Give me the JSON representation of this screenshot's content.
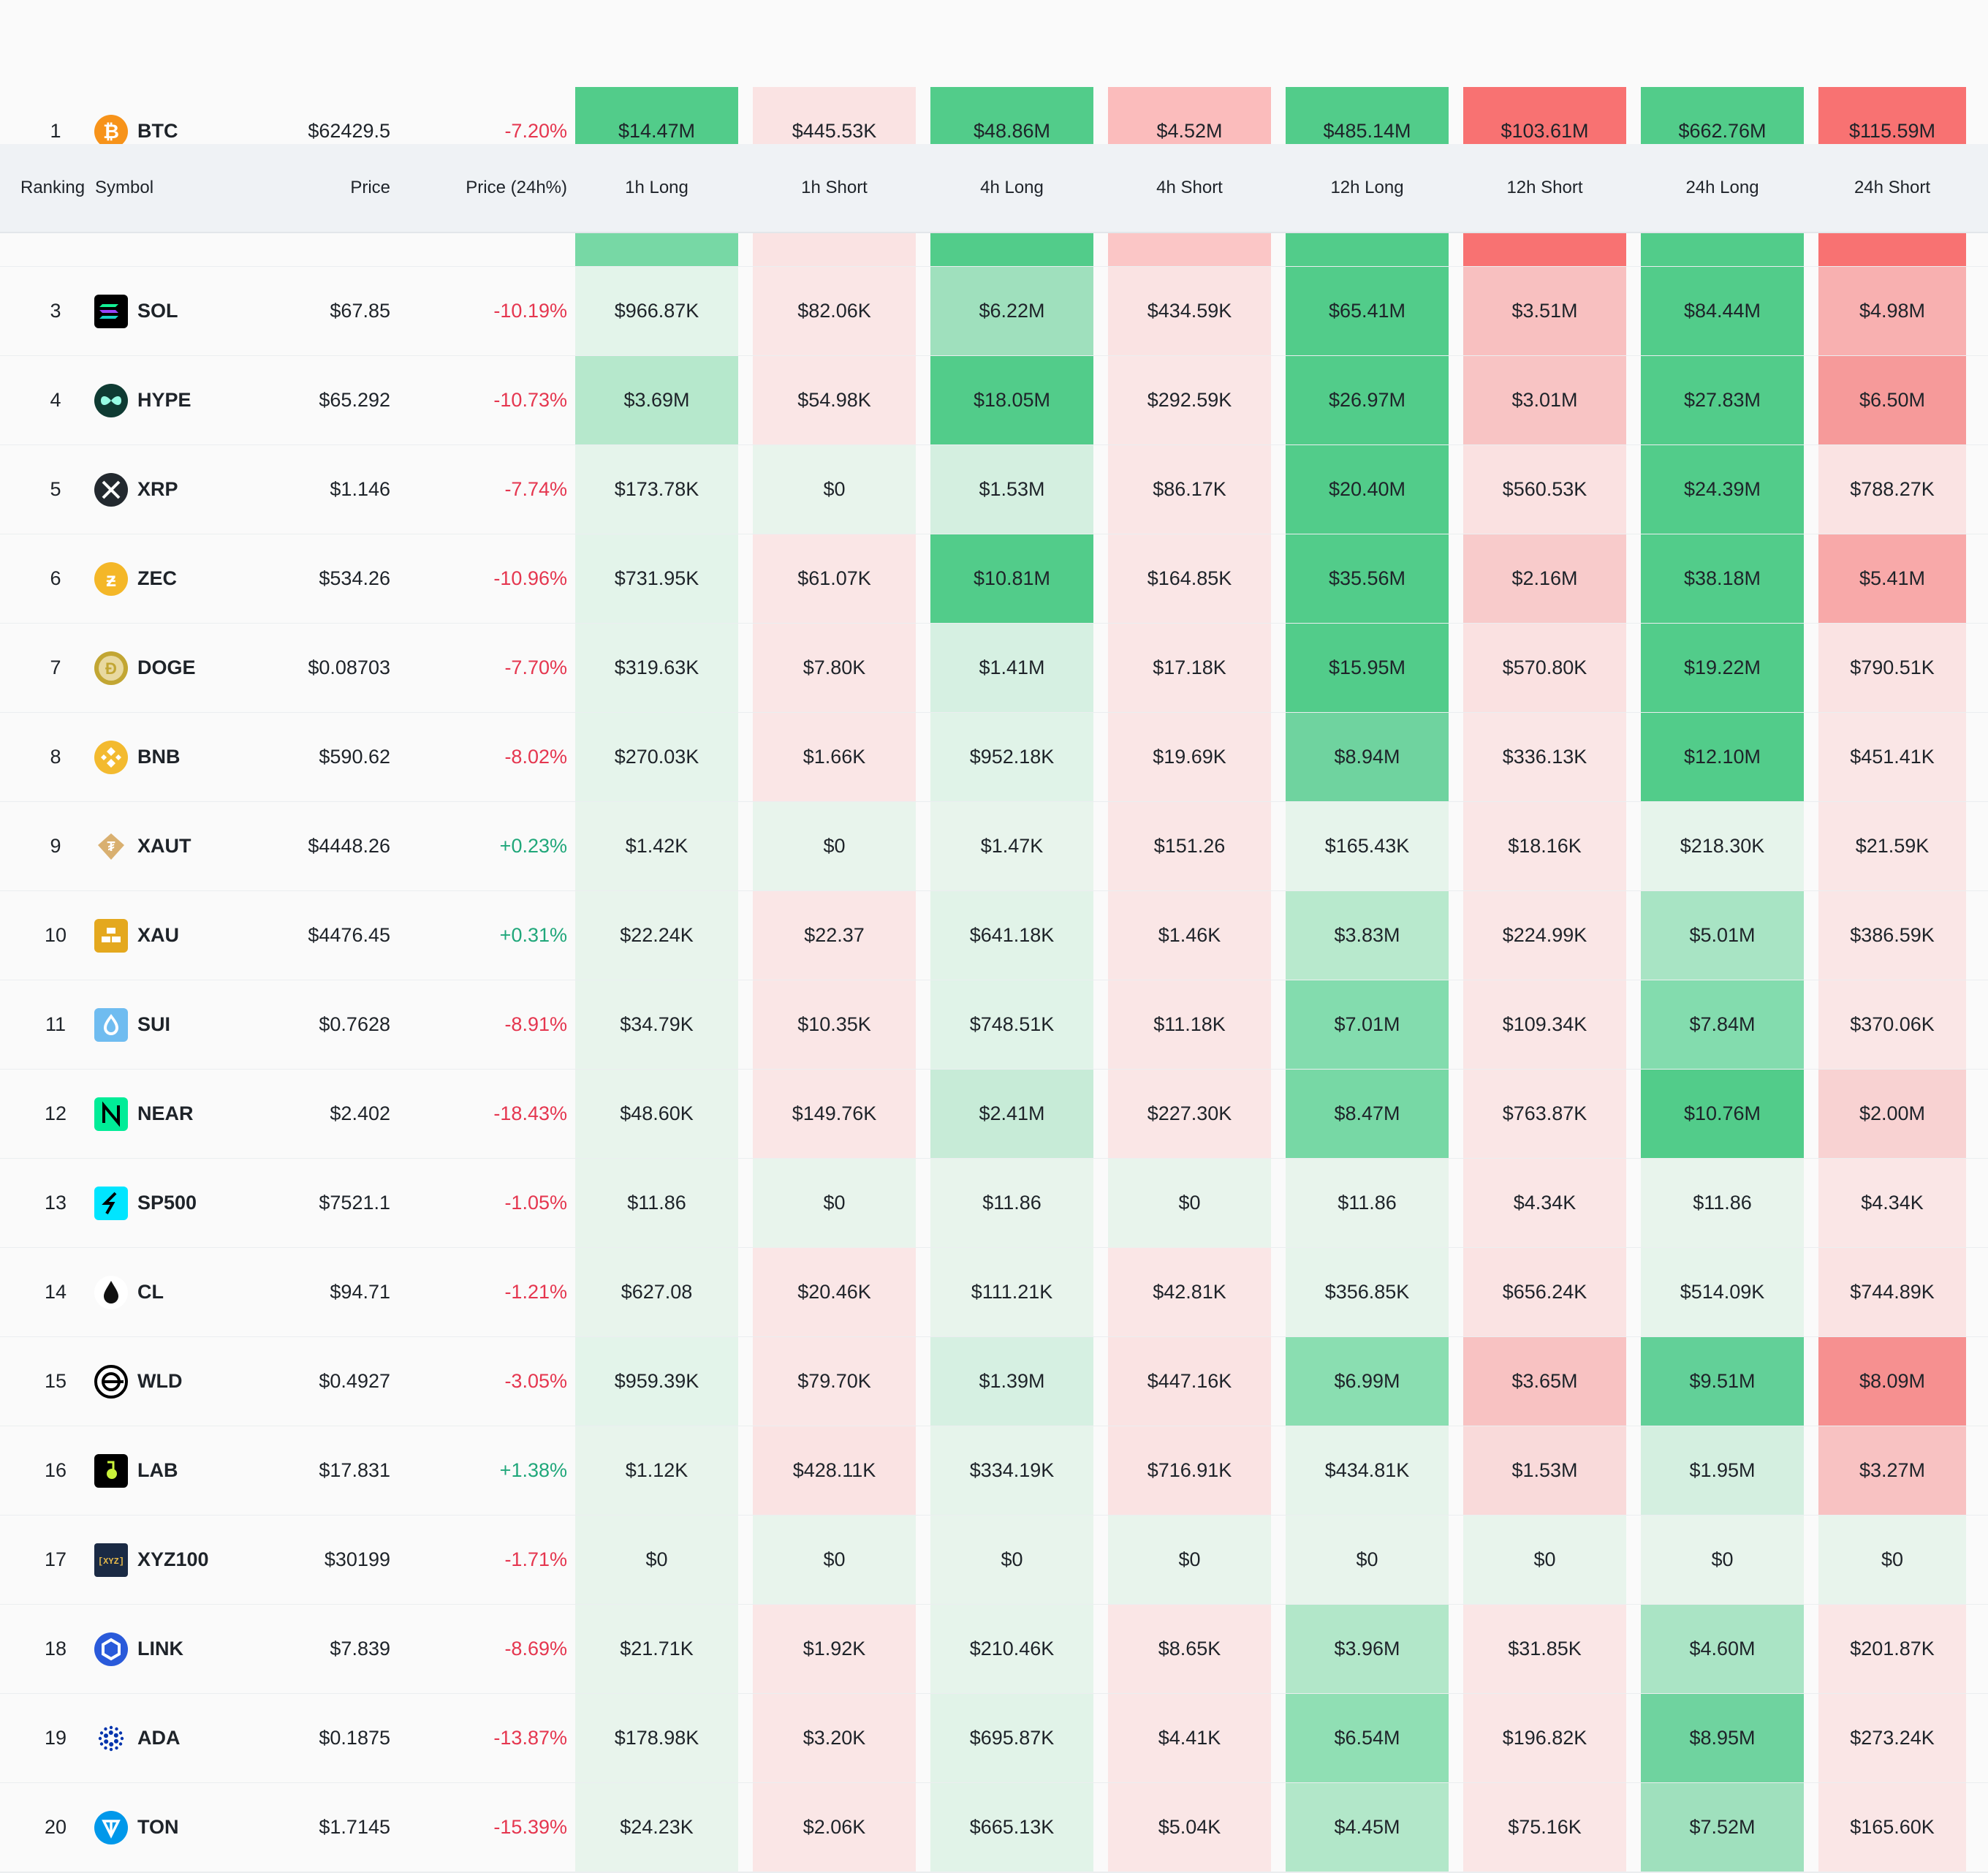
{
  "header": {
    "ranking": "Ranking",
    "symbol": "Symbol",
    "price": "Price",
    "change": "Price (24h%)",
    "cols": [
      "1h Long",
      "1h Short",
      "4h Long",
      "4h Short",
      "12h Long",
      "12h Short",
      "24h Long",
      "24h Short"
    ]
  },
  "colors": {
    "long_strong": "#52cc8a",
    "short_strong": "#f87272",
    "positive_text": "#20a77a",
    "negative_text": "#e5364f"
  },
  "rows": [
    {
      "rank": "1",
      "symbol": "BTC",
      "icon": "btc-icon",
      "price": "$62429.5",
      "change": "-7.20%",
      "values": [
        "$14.47M",
        "$445.53K",
        "$48.86M",
        "$4.52M",
        "$485.14M",
        "$103.61M",
        "$662.76M",
        "$115.59M"
      ]
    },
    {
      "rank": "",
      "symbol": "",
      "icon": "",
      "price": "",
      "change": "",
      "values": [
        "",
        "",
        "",
        "",
        "",
        "",
        "",
        ""
      ]
    },
    {
      "rank": "3",
      "symbol": "SOL",
      "icon": "sol-icon",
      "price": "$67.85",
      "change": "-10.19%",
      "values": [
        "$966.87K",
        "$82.06K",
        "$6.22M",
        "$434.59K",
        "$65.41M",
        "$3.51M",
        "$84.44M",
        "$4.98M"
      ]
    },
    {
      "rank": "4",
      "symbol": "HYPE",
      "icon": "hype-icon",
      "price": "$65.292",
      "change": "-10.73%",
      "values": [
        "$3.69M",
        "$54.98K",
        "$18.05M",
        "$292.59K",
        "$26.97M",
        "$3.01M",
        "$27.83M",
        "$6.50M"
      ]
    },
    {
      "rank": "5",
      "symbol": "XRP",
      "icon": "xrp-icon",
      "price": "$1.146",
      "change": "-7.74%",
      "values": [
        "$173.78K",
        "$0",
        "$1.53M",
        "$86.17K",
        "$20.40M",
        "$560.53K",
        "$24.39M",
        "$788.27K"
      ]
    },
    {
      "rank": "6",
      "symbol": "ZEC",
      "icon": "zec-icon",
      "price": "$534.26",
      "change": "-10.96%",
      "values": [
        "$731.95K",
        "$61.07K",
        "$10.81M",
        "$164.85K",
        "$35.56M",
        "$2.16M",
        "$38.18M",
        "$5.41M"
      ]
    },
    {
      "rank": "7",
      "symbol": "DOGE",
      "icon": "doge-icon",
      "price": "$0.08703",
      "change": "-7.70%",
      "values": [
        "$319.63K",
        "$7.80K",
        "$1.41M",
        "$17.18K",
        "$15.95M",
        "$570.80K",
        "$19.22M",
        "$790.51K"
      ]
    },
    {
      "rank": "8",
      "symbol": "BNB",
      "icon": "bnb-icon",
      "price": "$590.62",
      "change": "-8.02%",
      "values": [
        "$270.03K",
        "$1.66K",
        "$952.18K",
        "$19.69K",
        "$8.94M",
        "$336.13K",
        "$12.10M",
        "$451.41K"
      ]
    },
    {
      "rank": "9",
      "symbol": "XAUT",
      "icon": "xaut-icon",
      "price": "$4448.26",
      "change": "+0.23%",
      "values": [
        "$1.42K",
        "$0",
        "$1.47K",
        "$151.26",
        "$165.43K",
        "$18.16K",
        "$218.30K",
        "$21.59K"
      ]
    },
    {
      "rank": "10",
      "symbol": "XAU",
      "icon": "xau-icon",
      "price": "$4476.45",
      "change": "+0.31%",
      "values": [
        "$22.24K",
        "$22.37",
        "$641.18K",
        "$1.46K",
        "$3.83M",
        "$224.99K",
        "$5.01M",
        "$386.59K"
      ]
    },
    {
      "rank": "11",
      "symbol": "SUI",
      "icon": "sui-icon",
      "price": "$0.7628",
      "change": "-8.91%",
      "values": [
        "$34.79K",
        "$10.35K",
        "$748.51K",
        "$11.18K",
        "$7.01M",
        "$109.34K",
        "$7.84M",
        "$370.06K"
      ]
    },
    {
      "rank": "12",
      "symbol": "NEAR",
      "icon": "near-icon",
      "price": "$2.402",
      "change": "-18.43%",
      "values": [
        "$48.60K",
        "$149.76K",
        "$2.41M",
        "$227.30K",
        "$8.47M",
        "$763.87K",
        "$10.76M",
        "$2.00M"
      ]
    },
    {
      "rank": "13",
      "symbol": "SP500",
      "icon": "sp500-icon",
      "price": "$7521.1",
      "change": "-1.05%",
      "values": [
        "$11.86",
        "$0",
        "$11.86",
        "$0",
        "$11.86",
        "$4.34K",
        "$11.86",
        "$4.34K"
      ]
    },
    {
      "rank": "14",
      "symbol": "CL",
      "icon": "oil-drop-icon",
      "price": "$94.71",
      "change": "-1.21%",
      "values": [
        "$627.08",
        "$20.46K",
        "$111.21K",
        "$42.81K",
        "$356.85K",
        "$656.24K",
        "$514.09K",
        "$744.89K"
      ]
    },
    {
      "rank": "15",
      "symbol": "WLD",
      "icon": "wld-icon",
      "price": "$0.4927",
      "change": "-3.05%",
      "values": [
        "$959.39K",
        "$79.70K",
        "$1.39M",
        "$447.16K",
        "$6.99M",
        "$3.65M",
        "$9.51M",
        "$8.09M"
      ]
    },
    {
      "rank": "16",
      "symbol": "LAB",
      "icon": "lab-icon",
      "price": "$17.831",
      "change": "+1.38%",
      "values": [
        "$1.12K",
        "$428.11K",
        "$334.19K",
        "$716.91K",
        "$434.81K",
        "$1.53M",
        "$1.95M",
        "$3.27M"
      ]
    },
    {
      "rank": "17",
      "symbol": "XYZ100",
      "icon": "xyz100-icon",
      "price": "$30199",
      "change": "-1.71%",
      "values": [
        "$0",
        "$0",
        "$0",
        "$0",
        "$0",
        "$0",
        "$0",
        "$0"
      ]
    },
    {
      "rank": "18",
      "symbol": "LINK",
      "icon": "link-icon",
      "price": "$7.839",
      "change": "-8.69%",
      "values": [
        "$21.71K",
        "$1.92K",
        "$210.46K",
        "$8.65K",
        "$3.96M",
        "$31.85K",
        "$4.60M",
        "$201.87K"
      ]
    },
    {
      "rank": "19",
      "symbol": "ADA",
      "icon": "ada-icon",
      "price": "$0.1875",
      "change": "-13.87%",
      "values": [
        "$178.98K",
        "$3.20K",
        "$695.87K",
        "$4.41K",
        "$6.54M",
        "$196.82K",
        "$8.95M",
        "$273.24K"
      ]
    },
    {
      "rank": "20",
      "symbol": "TON",
      "icon": "ton-icon",
      "price": "$1.7145",
      "change": "-15.39%",
      "values": [
        "$24.23K",
        "$2.06K",
        "$665.13K",
        "$5.04K",
        "$4.45M",
        "$75.16K",
        "$7.52M",
        "$165.60K"
      ]
    }
  ]
}
